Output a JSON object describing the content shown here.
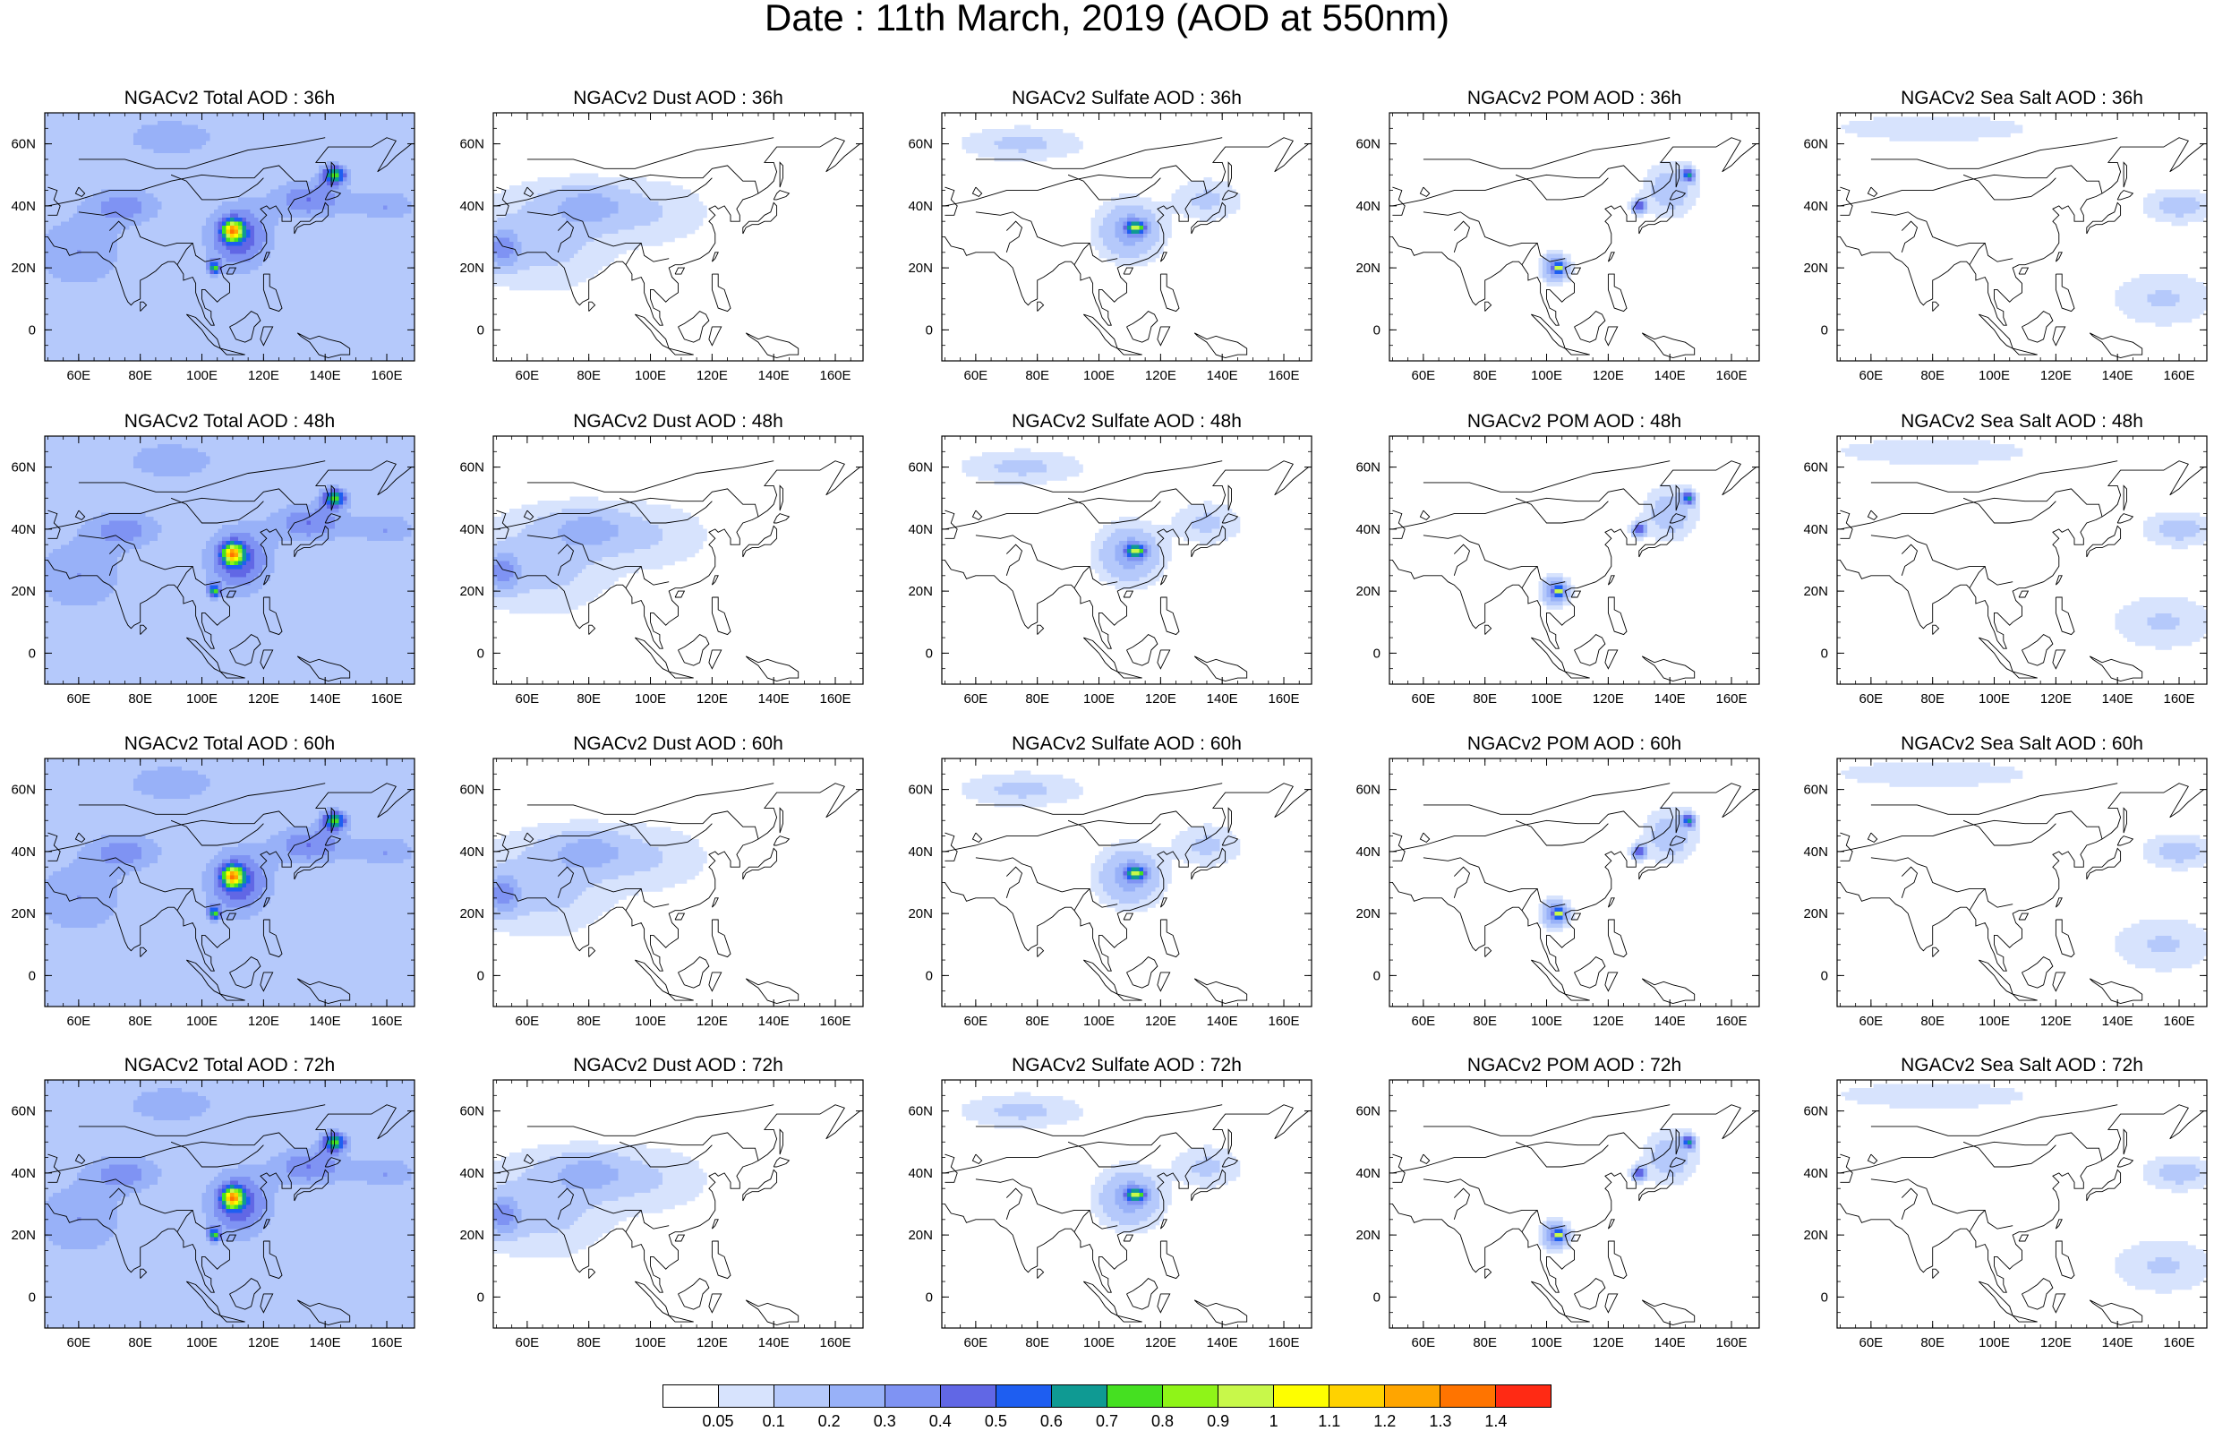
{
  "title": "Date : 11th March, 2019 (AOD at 550nm)",
  "panels": [
    {
      "title": "NGACv2 Total AOD : 36h",
      "variable": "Total",
      "lead": "36h"
    },
    {
      "title": "NGACv2 Dust AOD : 36h",
      "variable": "Dust",
      "lead": "36h"
    },
    {
      "title": "NGACv2 Sulfate AOD : 36h",
      "variable": "Sulfate",
      "lead": "36h"
    },
    {
      "title": "NGACv2 POM AOD : 36h",
      "variable": "POM",
      "lead": "36h"
    },
    {
      "title": "NGACv2 Sea Salt AOD : 36h",
      "variable": "Sea Salt",
      "lead": "36h"
    },
    {
      "title": "NGACv2 Total AOD : 48h",
      "variable": "Total",
      "lead": "48h"
    },
    {
      "title": "NGACv2 Dust AOD : 48h",
      "variable": "Dust",
      "lead": "48h"
    },
    {
      "title": "NGACv2 Sulfate AOD : 48h",
      "variable": "Sulfate",
      "lead": "48h"
    },
    {
      "title": "NGACv2 POM AOD : 48h",
      "variable": "POM",
      "lead": "48h"
    },
    {
      "title": "NGACv2 Sea Salt AOD : 48h",
      "variable": "Sea Salt",
      "lead": "48h"
    },
    {
      "title": "NGACv2 Total AOD : 60h",
      "variable": "Total",
      "lead": "60h"
    },
    {
      "title": "NGACv2 Dust AOD : 60h",
      "variable": "Dust",
      "lead": "60h"
    },
    {
      "title": "NGACv2 Sulfate AOD : 60h",
      "variable": "Sulfate",
      "lead": "60h"
    },
    {
      "title": "NGACv2 POM AOD : 60h",
      "variable": "POM",
      "lead": "60h"
    },
    {
      "title": "NGACv2 Sea Salt AOD : 60h",
      "variable": "Sea Salt",
      "lead": "60h"
    },
    {
      "title": "NGACv2 Total AOD : 72h",
      "variable": "Total",
      "lead": "72h"
    },
    {
      "title": "NGACv2 Dust AOD : 72h",
      "variable": "Dust",
      "lead": "72h"
    },
    {
      "title": "NGACv2 Sulfate AOD : 72h",
      "variable": "Sulfate",
      "lead": "72h"
    },
    {
      "title": "NGACv2 POM AOD : 72h",
      "variable": "POM",
      "lead": "72h"
    },
    {
      "title": "NGACv2 Sea Salt  AOD : 72h",
      "variable": "Sea Salt",
      "lead": "72h"
    }
  ],
  "map": {
    "lon_range": [
      49,
      169
    ],
    "lat_range": [
      -10,
      70
    ],
    "lon_ticks": [
      60,
      80,
      100,
      120,
      140,
      160
    ],
    "lon_tick_labels": [
      "60E",
      "80E",
      "100E",
      "120E",
      "140E",
      "160E"
    ],
    "lat_ticks": [
      0,
      20,
      40,
      60
    ],
    "lat_tick_labels": [
      "0",
      "20N",
      "40N",
      "60N"
    ]
  },
  "colorbar": {
    "colors": [
      "#ffffff",
      "#d7e3fd",
      "#b5c9fb",
      "#98b1f8",
      "#7f93f3",
      "#6167e5",
      "#1e5ef1",
      "#0f9a93",
      "#45e021",
      "#8ff418",
      "#c8f84a",
      "#fefe00",
      "#ffd200",
      "#ffa500",
      "#ff7400",
      "#ff2a14"
    ],
    "labels": [
      "0.05",
      "0.1",
      "0.2",
      "0.3",
      "0.4",
      "0.5",
      "0.6",
      "0.7",
      "0.8",
      "0.9",
      "1",
      "1.1",
      "1.2",
      "1.3",
      "1.4"
    ]
  },
  "aod_fields": {
    "Total": {
      "background": 0.1,
      "blobs": [
        {
          "lon": 60,
          "lat": 25,
          "rlon": 15,
          "rlat": 12,
          "v": 0.2
        },
        {
          "lon": 75,
          "lat": 40,
          "rlon": 12,
          "rlat": 6,
          "v": 0.25
        },
        {
          "lon": 112,
          "lat": 30,
          "rlon": 10,
          "rlat": 10,
          "v": 0.4
        },
        {
          "lon": 110,
          "lat": 32,
          "rlon": 3,
          "rlat": 3,
          "v": 0.9
        },
        {
          "lon": 104,
          "lat": 20,
          "rlon": 2,
          "rlat": 2,
          "v": 0.6
        },
        {
          "lon": 135,
          "lat": 42,
          "rlon": 12,
          "rlat": 6,
          "v": 0.3
        },
        {
          "lon": 143,
          "lat": 50,
          "rlon": 4,
          "rlat": 3,
          "v": 0.6
        },
        {
          "lon": 160,
          "lat": 40,
          "rlon": 10,
          "rlat": 5,
          "v": 0.2
        },
        {
          "lon": 90,
          "lat": 62,
          "rlon": 15,
          "rlat": 6,
          "v": 0.2
        }
      ]
    },
    "Dust": {
      "background": 0.02,
      "blobs": [
        {
          "lon": 65,
          "lat": 30,
          "rlon": 20,
          "rlat": 15,
          "v": 0.12
        },
        {
          "lon": 80,
          "lat": 40,
          "rlon": 12,
          "rlat": 6,
          "v": 0.2
        },
        {
          "lon": 100,
          "lat": 38,
          "rlon": 18,
          "rlat": 10,
          "v": 0.08
        },
        {
          "lon": 52,
          "lat": 26,
          "rlon": 5,
          "rlat": 6,
          "v": 0.3
        }
      ]
    },
    "Sulfate": {
      "background": 0.02,
      "blobs": [
        {
          "lon": 110,
          "lat": 32,
          "rlon": 9,
          "rlat": 8,
          "v": 0.25
        },
        {
          "lon": 112,
          "lat": 33,
          "rlon": 3,
          "rlat": 2,
          "v": 0.7
        },
        {
          "lon": 75,
          "lat": 60,
          "rlon": 18,
          "rlat": 5,
          "v": 0.1
        },
        {
          "lon": 135,
          "lat": 42,
          "rlon": 10,
          "rlat": 6,
          "v": 0.1
        }
      ]
    },
    "POM": {
      "background": 0.01,
      "blobs": [
        {
          "lon": 103,
          "lat": 20,
          "rlon": 4,
          "rlat": 4,
          "v": 0.35
        },
        {
          "lon": 104,
          "lat": 20,
          "rlon": 1.5,
          "rlat": 1.5,
          "v": 0.7
        },
        {
          "lon": 140,
          "lat": 45,
          "rlon": 8,
          "rlat": 8,
          "v": 0.15
        },
        {
          "lon": 146,
          "lat": 50,
          "rlon": 2,
          "rlat": 2,
          "v": 0.6
        },
        {
          "lon": 130,
          "lat": 40,
          "rlon": 2,
          "rlat": 2,
          "v": 0.5
        }
      ]
    },
    "Sea Salt": {
      "background": 0.02,
      "blobs": [
        {
          "lon": 160,
          "lat": 40,
          "rlon": 10,
          "rlat": 5,
          "v": 0.12
        },
        {
          "lon": 155,
          "lat": 10,
          "rlon": 15,
          "rlat": 8,
          "v": 0.09
        },
        {
          "lon": 80,
          "lat": 65,
          "rlon": 30,
          "rlat": 4,
          "v": 0.08
        }
      ]
    }
  }
}
